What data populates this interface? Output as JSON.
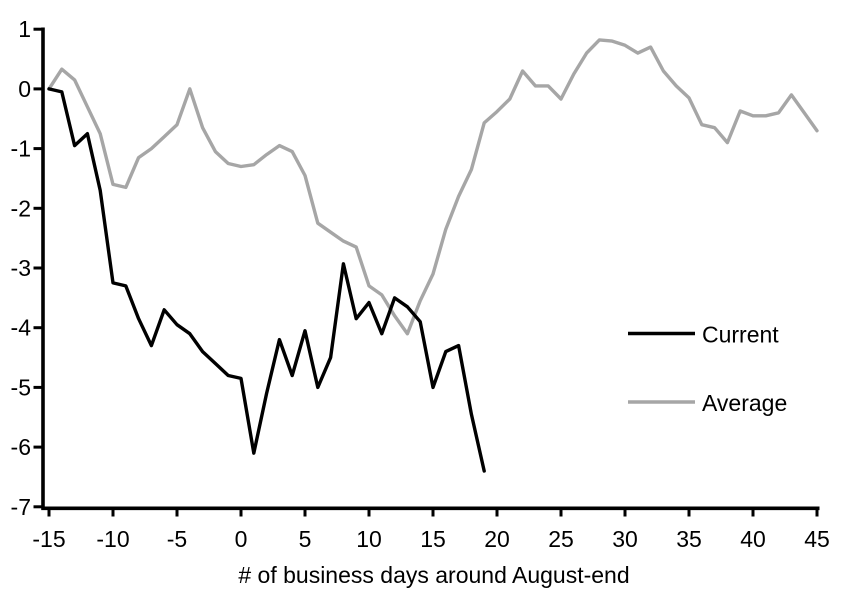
{
  "chart_data": {
    "type": "line",
    "title": "",
    "xlabel": "# of business days around August-end",
    "ylabel": "",
    "xlim": [
      -15,
      45
    ],
    "ylim": [
      -7,
      1
    ],
    "grid": false,
    "legend_position": "right-middle",
    "x_ticks": [
      -15,
      -10,
      -5,
      0,
      5,
      10,
      15,
      20,
      25,
      30,
      35,
      40,
      45
    ],
    "y_ticks": [
      1,
      0,
      -1,
      -2,
      -3,
      -4,
      -5,
      -6,
      -7
    ],
    "series": [
      {
        "name": "Current",
        "color": "#000000",
        "x": [
          -15,
          -14,
          -13,
          -12,
          -11,
          -10,
          -9,
          -8,
          -7,
          -6,
          -5,
          -4,
          -3,
          -2,
          -1,
          0,
          1,
          2,
          3,
          4,
          5,
          6,
          7,
          8,
          9,
          10,
          11,
          12,
          13,
          14,
          15,
          16,
          17,
          18,
          19
        ],
        "values": [
          0,
          -0.05,
          -0.95,
          -0.75,
          -1.7,
          -3.25,
          -3.3,
          -3.85,
          -4.3,
          -3.7,
          -3.95,
          -4.1,
          -4.4,
          -4.6,
          -4.8,
          -4.85,
          -6.1,
          -5.1,
          -4.2,
          -4.8,
          -4.05,
          -5.0,
          -4.5,
          -2.93,
          -3.85,
          -3.58,
          -4.1,
          -3.5,
          -3.65,
          -3.9,
          -5.0,
          -4.4,
          -4.3,
          -5.45,
          -6.4
        ]
      },
      {
        "name": "Average",
        "color": "#a6a6a6",
        "x": [
          -15,
          -14,
          -13,
          -12,
          -11,
          -10,
          -9,
          -8,
          -7,
          -6,
          -5,
          -4,
          -3,
          -2,
          -1,
          0,
          1,
          2,
          3,
          4,
          5,
          6,
          7,
          8,
          9,
          10,
          11,
          12,
          13,
          14,
          15,
          16,
          17,
          18,
          19,
          20,
          21,
          22,
          23,
          24,
          25,
          26,
          27,
          28,
          29,
          30,
          31,
          32,
          33,
          34,
          35,
          36,
          37,
          38,
          39,
          40,
          41,
          42,
          43,
          44,
          45
        ],
        "values": [
          0,
          0.33,
          0.15,
          -0.3,
          -0.75,
          -1.6,
          -1.65,
          -1.15,
          -1.0,
          -0.8,
          -0.6,
          0.0,
          -0.65,
          -1.05,
          -1.25,
          -1.3,
          -1.27,
          -1.1,
          -0.95,
          -1.05,
          -1.45,
          -2.25,
          -2.4,
          -2.55,
          -2.65,
          -3.3,
          -3.45,
          -3.8,
          -4.1,
          -3.55,
          -3.1,
          -2.35,
          -1.8,
          -1.35,
          -0.57,
          -0.38,
          -0.17,
          0.3,
          0.05,
          0.05,
          -0.17,
          0.25,
          0.6,
          0.82,
          0.8,
          0.73,
          0.6,
          0.7,
          0.3,
          0.05,
          -0.15,
          -0.6,
          -0.65,
          -0.9,
          -0.37,
          -0.45,
          -0.45,
          -0.4,
          -0.1,
          -0.4,
          -0.7
        ]
      }
    ]
  },
  "legend": {
    "current_label": "Current",
    "average_label": "Average"
  },
  "colors": {
    "axis": "#000000",
    "current_line": "#000000",
    "average_line": "#a6a6a6",
    "background": "#ffffff"
  }
}
